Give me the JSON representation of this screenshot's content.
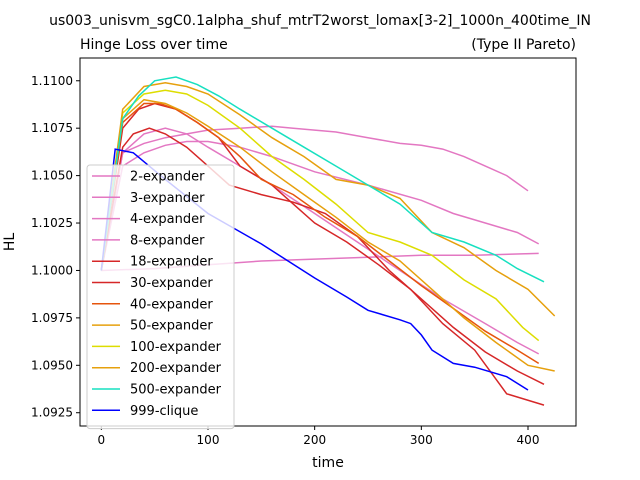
{
  "chart_data": {
    "type": "line",
    "suptitle": "us003_unisvm_sgC0.1alpha_shuf_mtrT2worst_lomax[3-2]_1000n_400time_IN",
    "title": "Hinge Loss over time",
    "title_right": "(Type II Pareto)",
    "xlabel": "time",
    "ylabel": "HL",
    "xlim": [
      -20,
      445
    ],
    "ylim": [
      1.0918,
      1.1112
    ],
    "xticks": [
      0,
      100,
      200,
      300,
      400
    ],
    "yticks": [
      1.0925,
      1.095,
      1.0975,
      1.1,
      1.1025,
      1.105,
      1.1075,
      1.11
    ],
    "ytick_labels": [
      "1.0925",
      "1.0950",
      "1.0975",
      "1.1000",
      "1.1025",
      "1.1050",
      "1.1075",
      "1.1100"
    ],
    "legend_position": "lower-left",
    "series": [
      {
        "name": "2-expander",
        "color": "#e377c2",
        "x": [
          0,
          20,
          40,
          60,
          80,
          100,
          130,
          160,
          180,
          220,
          250,
          280,
          300,
          320,
          340,
          360,
          380,
          400
        ],
        "y": [
          1.1,
          1.1062,
          1.1067,
          1.107,
          1.1072,
          1.1074,
          1.1075,
          1.1076,
          1.1075,
          1.1073,
          1.107,
          1.1067,
          1.1066,
          1.1064,
          1.106,
          1.1055,
          1.105,
          1.1042
        ]
      },
      {
        "name": "3-expander",
        "color": "#e377c2",
        "x": [
          0,
          50,
          100,
          150,
          200,
          250,
          300,
          350,
          410
        ],
        "y": [
          1.1,
          1.1001,
          1.1003,
          1.1005,
          1.1006,
          1.1007,
          1.1008,
          1.1008,
          1.1009
        ]
      },
      {
        "name": "4-expander",
        "color": "#e377c2",
        "x": [
          0,
          20,
          40,
          60,
          80,
          100,
          130,
          160,
          200,
          250,
          300,
          330,
          360,
          390,
          410
        ],
        "y": [
          1.1,
          1.1055,
          1.1062,
          1.1066,
          1.1068,
          1.1068,
          1.1065,
          1.106,
          1.1052,
          1.1045,
          1.1037,
          1.103,
          1.1025,
          1.102,
          1.1014
        ]
      },
      {
        "name": "8-expander",
        "color": "#e377c2",
        "x": [
          0,
          20,
          40,
          60,
          80,
          100,
          130,
          160,
          200,
          240,
          280,
          320,
          360,
          390,
          410
        ],
        "y": [
          1.1,
          1.1062,
          1.1072,
          1.1075,
          1.1072,
          1.1065,
          1.1055,
          1.1045,
          1.103,
          1.1015,
          1.1,
          1.0985,
          1.0972,
          1.0962,
          1.0956
        ]
      },
      {
        "name": "18-expander",
        "color": "#d62728",
        "x": [
          0,
          20,
          30,
          45,
          60,
          80,
          100,
          120,
          150,
          180,
          210,
          240,
          270,
          300,
          330,
          360,
          390,
          415
        ],
        "y": [
          1.1,
          1.1065,
          1.1072,
          1.1075,
          1.1072,
          1.1065,
          1.1055,
          1.1045,
          1.104,
          1.1036,
          1.103,
          1.1018,
          1.1,
          1.0985,
          1.097,
          1.0957,
          1.0947,
          1.094
        ]
      },
      {
        "name": "30-expander",
        "color": "#d62728",
        "x": [
          0,
          20,
          35,
          50,
          70,
          90,
          110,
          130,
          160,
          180,
          200,
          230,
          260,
          290,
          320,
          350,
          380,
          415
        ],
        "y": [
          1.1,
          1.1075,
          1.1085,
          1.1088,
          1.1085,
          1.1078,
          1.107,
          1.1055,
          1.1045,
          1.1035,
          1.1025,
          1.1015,
          1.1003,
          1.099,
          1.0972,
          1.0958,
          1.0935,
          1.0929
        ]
      },
      {
        "name": "40-expander",
        "color": "#e6550d",
        "x": [
          0,
          20,
          40,
          55,
          70,
          90,
          110,
          130,
          150,
          180,
          210,
          240,
          270,
          300,
          330,
          360,
          390,
          410
        ],
        "y": [
          1.1,
          1.1078,
          1.1088,
          1.1088,
          1.1085,
          1.1078,
          1.107,
          1.106,
          1.1048,
          1.104,
          1.1028,
          1.1018,
          1.1005,
          1.0992,
          1.098,
          1.0968,
          1.0958,
          1.0951
        ]
      },
      {
        "name": "50-expander",
        "color": "#e6a00d",
        "x": [
          0,
          20,
          40,
          60,
          80,
          100,
          130,
          160,
          190,
          220,
          250,
          280,
          310,
          340,
          370,
          400,
          425
        ],
        "y": [
          1.1,
          1.108,
          1.109,
          1.1088,
          1.1083,
          1.1076,
          1.1065,
          1.1052,
          1.104,
          1.1028,
          1.1015,
          1.1005,
          1.099,
          1.0975,
          1.0962,
          1.095,
          1.0947
        ]
      },
      {
        "name": "100-expander",
        "color": "#dddd00",
        "x": [
          0,
          20,
          40,
          60,
          80,
          100,
          130,
          160,
          190,
          220,
          250,
          280,
          310,
          340,
          370,
          395,
          410
        ],
        "y": [
          1.1,
          1.1083,
          1.1093,
          1.1095,
          1.1093,
          1.1087,
          1.1075,
          1.106,
          1.1048,
          1.1035,
          1.102,
          1.1015,
          1.1008,
          1.0995,
          1.0985,
          1.097,
          1.0963
        ]
      },
      {
        "name": "200-expander",
        "color": "#e6a00d",
        "x": [
          0,
          20,
          40,
          60,
          80,
          100,
          130,
          160,
          190,
          220,
          250,
          280,
          310,
          340,
          370,
          400,
          425
        ],
        "y": [
          1.1,
          1.1085,
          1.1097,
          1.1099,
          1.1097,
          1.1093,
          1.1082,
          1.107,
          1.106,
          1.1048,
          1.1045,
          1.1038,
          1.102,
          1.1012,
          1.1,
          1.099,
          1.0976
        ]
      },
      {
        "name": "500-expander",
        "color": "#17e0c0",
        "x": [
          0,
          20,
          35,
          50,
          70,
          90,
          110,
          130,
          160,
          190,
          220,
          250,
          280,
          310,
          340,
          370,
          390,
          415
        ],
        "y": [
          1.1,
          1.108,
          1.1092,
          1.11,
          1.1102,
          1.1098,
          1.1092,
          1.1085,
          1.1075,
          1.1065,
          1.1055,
          1.1045,
          1.1035,
          1.102,
          1.1015,
          1.1008,
          1.1001,
          1.0994
        ]
      },
      {
        "name": "999-clique",
        "color": "#0000ff",
        "x": [
          0,
          13,
          30,
          60,
          100,
          150,
          200,
          230,
          250,
          280,
          290,
          300,
          310,
          330,
          350,
          380,
          400
        ],
        "y": [
          1.1,
          1.1064,
          1.1062,
          1.1048,
          1.103,
          1.1014,
          1.0996,
          1.0986,
          1.0979,
          1.0974,
          1.0972,
          1.0966,
          1.0958,
          1.0951,
          1.0949,
          1.0944,
          1.0937
        ]
      }
    ]
  }
}
